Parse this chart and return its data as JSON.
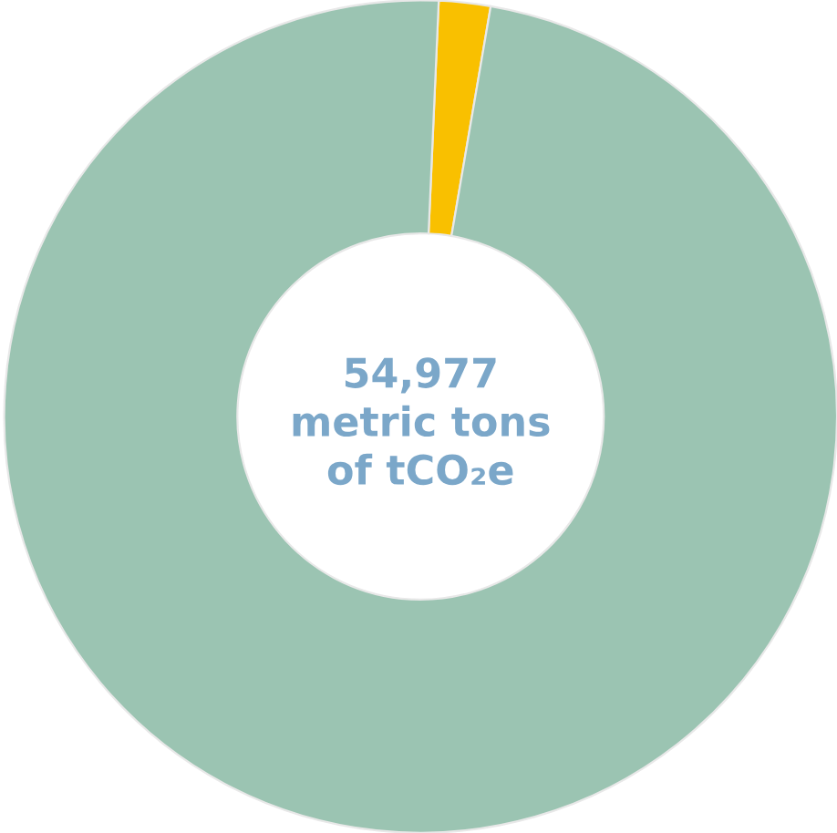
{
  "chart_data": {
    "type": "donut",
    "categories": [
      null,
      null
    ],
    "values": [
      2,
      98
    ],
    "colors": [
      "#f9c000",
      "#9bc4b2"
    ],
    "annotations": [
      "54,977\nmetric tons\nof tCO₂e"
    ]
  }
}
